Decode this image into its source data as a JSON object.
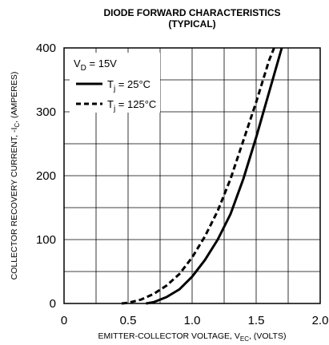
{
  "chart_data": {
    "type": "line",
    "title": "DIODE FORWARD CHARACTERISTICS",
    "subtitle": "(TYPICAL)",
    "xlabel": {
      "main": "EMITTER-COLLECTOR VOLTAGE, V",
      "sub": "EC",
      "tail": ", (VOLTS)"
    },
    "ylabel": {
      "main": "COLLECTOR RECOVERY CURRENT, -I",
      "sub": "C",
      "tail": ", (AMPERES)"
    },
    "xlim": [
      0,
      2.0
    ],
    "ylim": [
      0,
      400
    ],
    "x_ticks": [
      "0",
      "0.5",
      "1.0",
      "1.5",
      "2.0"
    ],
    "y_ticks": [
      "0",
      "100",
      "200",
      "300",
      "400"
    ],
    "grid": true,
    "legend_placement": "top-left",
    "condition": {
      "main": "V",
      "sub": "D",
      "tail": " = 15V"
    },
    "series": [
      {
        "name": "T",
        "name_sub": "j",
        "name_tail": " = 25°C",
        "style": "solid",
        "points": [
          [
            0.64,
            0
          ],
          [
            0.7,
            2
          ],
          [
            0.8,
            10
          ],
          [
            0.9,
            22
          ],
          [
            1.0,
            42
          ],
          [
            1.1,
            68
          ],
          [
            1.2,
            100
          ],
          [
            1.3,
            140
          ],
          [
            1.4,
            195
          ],
          [
            1.5,
            260
          ],
          [
            1.6,
            330
          ],
          [
            1.7,
            400
          ]
        ]
      },
      {
        "name": "T",
        "name_sub": "j",
        "name_tail": " = 125°C",
        "style": "dashed",
        "points": [
          [
            0.45,
            0
          ],
          [
            0.5,
            1
          ],
          [
            0.6,
            6
          ],
          [
            0.7,
            15
          ],
          [
            0.8,
            28
          ],
          [
            0.9,
            46
          ],
          [
            1.0,
            72
          ],
          [
            1.1,
            105
          ],
          [
            1.2,
            145
          ],
          [
            1.3,
            195
          ],
          [
            1.4,
            255
          ],
          [
            1.5,
            315
          ],
          [
            1.6,
            380
          ],
          [
            1.64,
            400
          ]
        ]
      }
    ]
  }
}
